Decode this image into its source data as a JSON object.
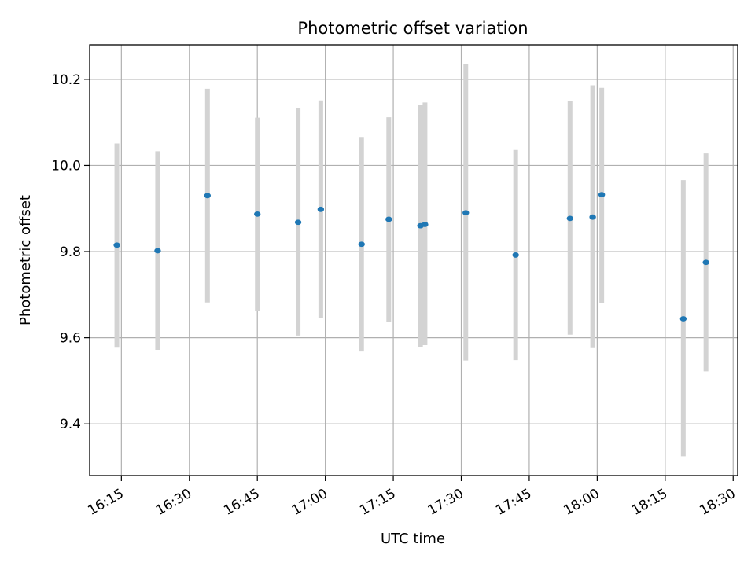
{
  "chart_data": {
    "type": "scatter",
    "title": "Photometric offset variation",
    "xlabel": "UTC time",
    "ylabel": "Photometric offset",
    "x_ticks": [
      "16:15",
      "16:30",
      "16:45",
      "17:00",
      "17:15",
      "17:30",
      "17:45",
      "18:00",
      "18:15",
      "18:30"
    ],
    "y_ticks": [
      "9.4",
      "9.6",
      "9.8",
      "10.0",
      "10.2"
    ],
    "xlim": [
      "16:08",
      "18:31"
    ],
    "ylim": [
      9.28,
      10.28
    ],
    "grid": true,
    "series": [
      {
        "x": [
          "16:14",
          "16:23",
          "16:34",
          "16:45",
          "16:54",
          "16:59",
          "17:08",
          "17:14",
          "17:21",
          "17:22",
          "17:31",
          "17:42",
          "17:54",
          "17:59",
          "18:01",
          "18:19",
          "18:24"
        ],
        "y": [
          9.815,
          9.802,
          9.93,
          9.887,
          9.868,
          9.898,
          9.817,
          9.875,
          9.86,
          9.863,
          9.89,
          9.792,
          9.877,
          9.88,
          9.932,
          9.644,
          9.775
        ],
        "yerr_low": [
          9.577,
          9.572,
          9.682,
          9.662,
          9.605,
          9.645,
          9.568,
          9.637,
          9.579,
          9.583,
          9.547,
          9.548,
          9.607,
          9.576,
          9.681,
          9.325,
          9.522
        ],
        "yerr_high": [
          10.051,
          10.033,
          10.178,
          10.111,
          10.133,
          10.151,
          10.066,
          10.112,
          10.141,
          10.146,
          10.235,
          10.036,
          10.149,
          10.186,
          10.18,
          9.966,
          10.028
        ]
      }
    ],
    "colors": {
      "marker": "#1f77b4",
      "errorbar": "#d3d3d3",
      "grid": "#b0b0b0"
    }
  }
}
